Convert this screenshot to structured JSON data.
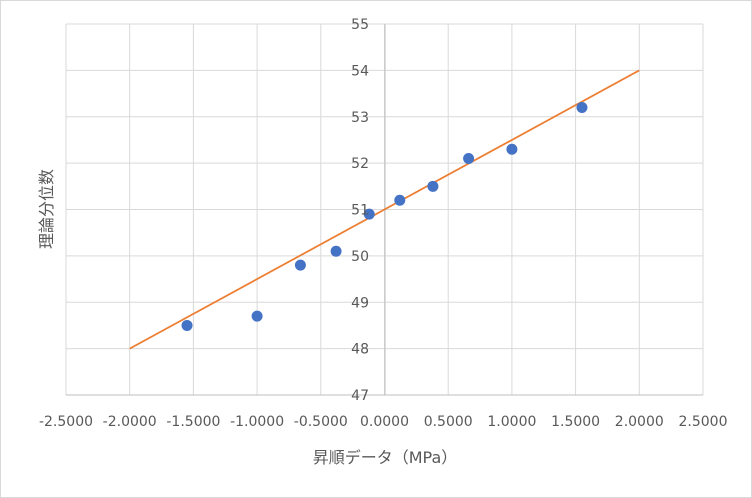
{
  "chart_data": {
    "type": "scatter",
    "title": "",
    "xlabel": "昇順データ（MPa）",
    "ylabel": "理論分位数",
    "xlim": [
      -2.5,
      2.5
    ],
    "ylim": [
      47,
      55
    ],
    "x_ticks": [
      -2.5,
      -2.0,
      -1.5,
      -1.0,
      -0.5,
      0.0,
      0.5,
      1.0,
      1.5,
      2.0,
      2.5
    ],
    "x_tick_labels": [
      "-2.5000",
      "-2.0000",
      "-1.5000",
      "-1.0000",
      "-0.5000",
      "0.0000",
      "0.5000",
      "1.0000",
      "1.5000",
      "2.0000",
      "2.5000"
    ],
    "y_ticks": [
      47,
      48,
      49,
      50,
      51,
      52,
      53,
      54,
      55
    ],
    "y_tick_labels": [
      "47",
      "48",
      "49",
      "50",
      "51",
      "52",
      "53",
      "54",
      "55"
    ],
    "grid": true,
    "legend": "none",
    "series": [
      {
        "type": "scatter",
        "color": "#4472c4",
        "points": [
          [
            -1.55,
            48.5
          ],
          [
            -1.0,
            48.7
          ],
          [
            -0.66,
            49.8
          ],
          [
            -0.38,
            50.1
          ],
          [
            -0.12,
            50.9
          ],
          [
            0.12,
            51.2
          ],
          [
            0.38,
            51.5
          ],
          [
            0.66,
            52.1
          ],
          [
            1.0,
            52.3
          ],
          [
            1.55,
            53.2
          ]
        ]
      },
      {
        "type": "line",
        "color": "#ed7d31",
        "points": [
          [
            -2.0,
            48.0
          ],
          [
            2.0,
            54.0
          ]
        ]
      }
    ]
  }
}
